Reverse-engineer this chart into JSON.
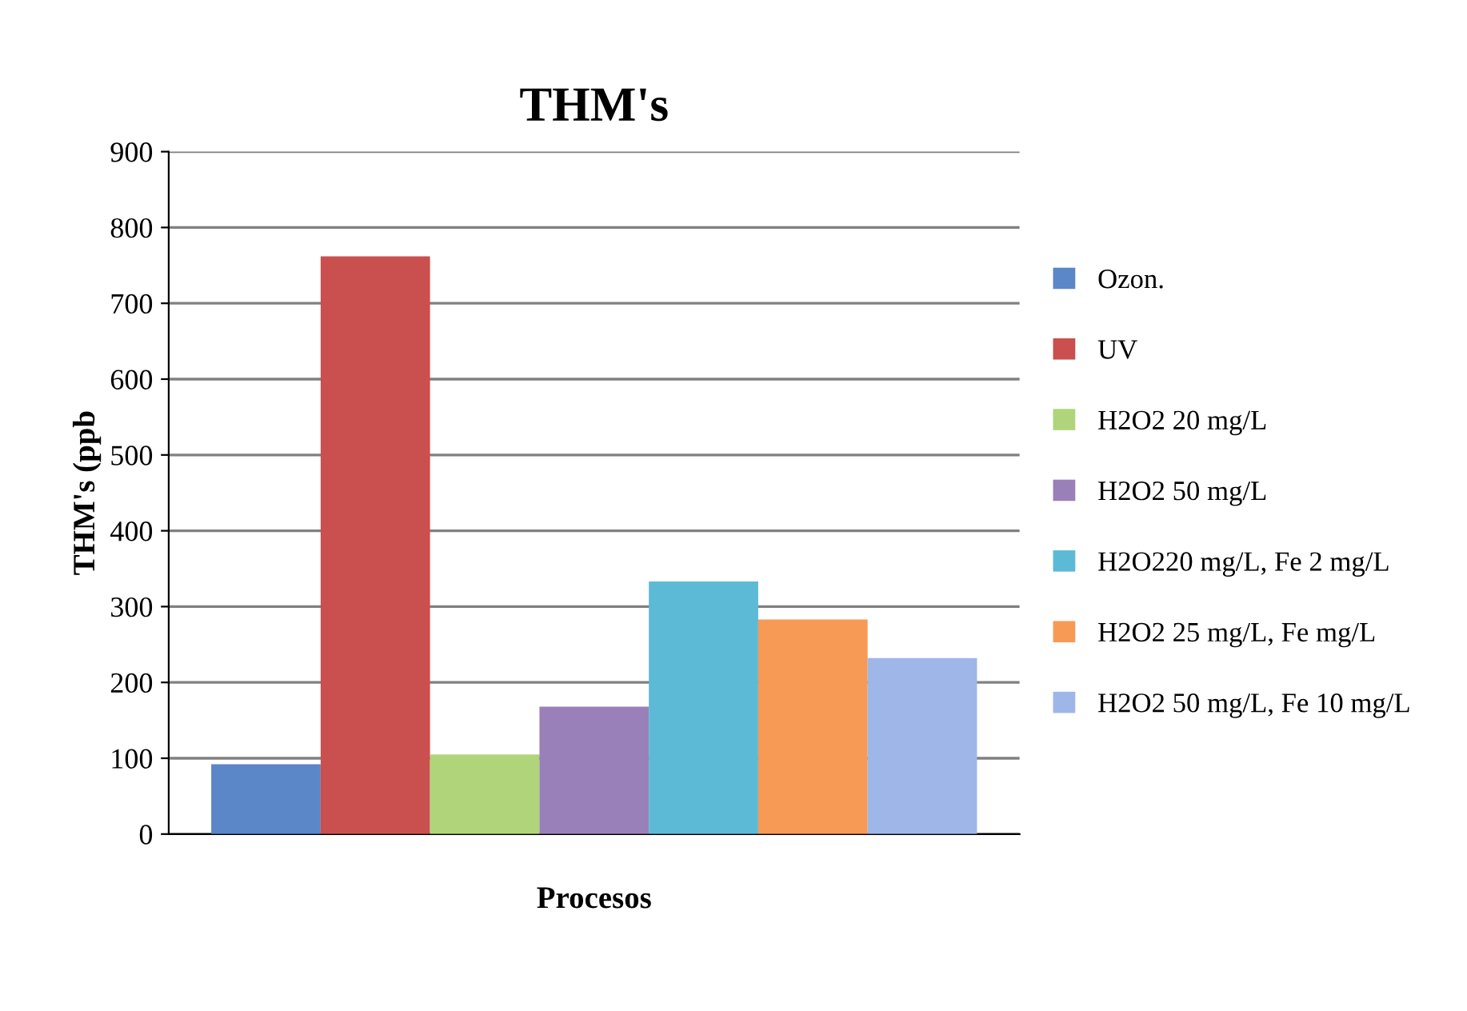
{
  "chart_data": {
    "type": "bar",
    "title": "THM's",
    "xlabel": "Procesos",
    "ylabel": "THM's (ppb",
    "categories": [
      null
    ],
    "series": [
      {
        "name": "Ozon.",
        "color": "#5b86c8",
        "values": [
          92
        ]
      },
      {
        "name": "UV",
        "color": "#c9504e",
        "values": [
          762
        ]
      },
      {
        "name": "H2O2 20 mg/L",
        "color": "#b0d47a",
        "values": [
          105
        ]
      },
      {
        "name": "H2O2 50 mg/L",
        "color": "#9a80b8",
        "values": [
          168
        ]
      },
      {
        "name": "H2O220 mg/L, Fe 2 mg/L",
        "color": "#5cbad6",
        "values": [
          333
        ]
      },
      {
        "name": "H2O2 25 mg/L, Fe mg/L",
        "color": "#f79a55",
        "values": [
          283
        ]
      },
      {
        "name": "H2O2 50 mg/L, Fe 10 mg/L",
        "color": "#9fb6e8",
        "values": [
          232
        ]
      }
    ],
    "ylim": [
      0,
      900
    ],
    "yticks": [
      0,
      100,
      200,
      300,
      400,
      500,
      600,
      700,
      800,
      900
    ],
    "grid": "y",
    "legend": "right"
  }
}
